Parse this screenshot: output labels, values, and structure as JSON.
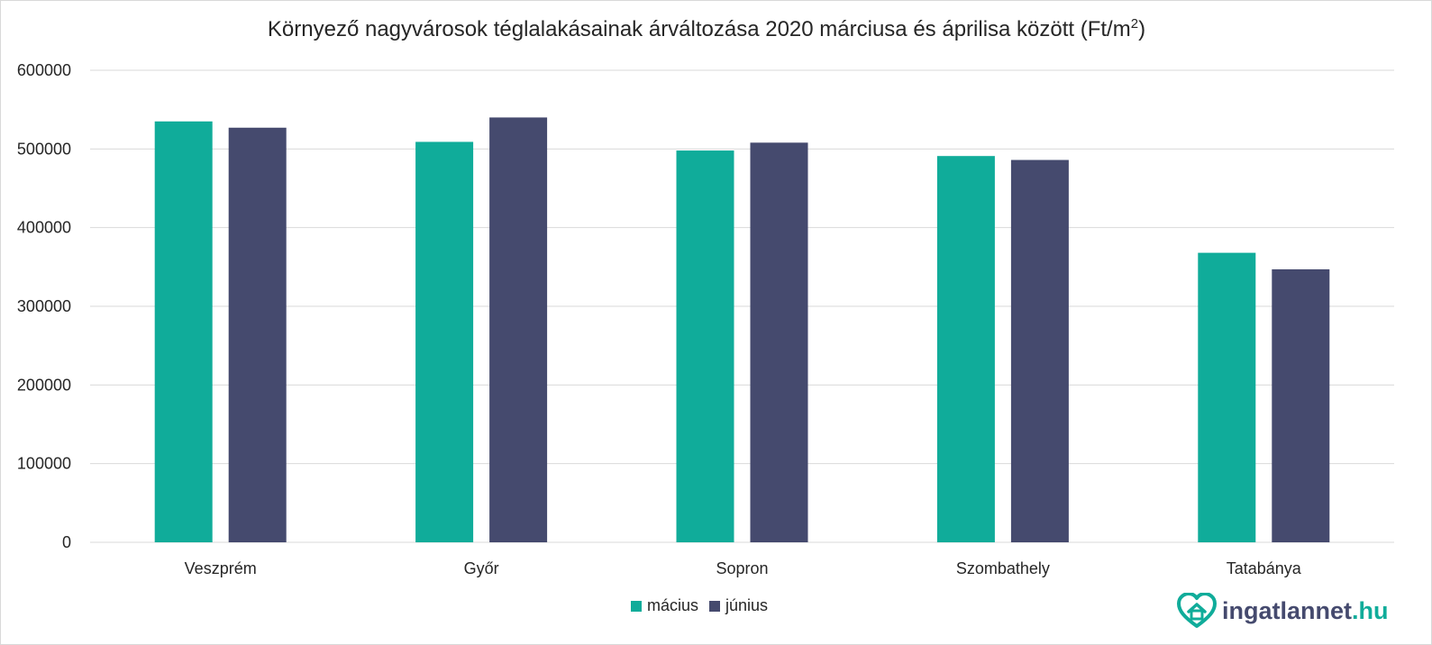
{
  "chart_data": {
    "type": "bar",
    "title_main": "Környező  nagyvárosok téglalakásainak árváltozása 2020 márciusa és áprilisa között (Ft/m",
    "title_sup": "2",
    "title_close": ")",
    "categories": [
      "Veszprém",
      "Győr",
      "Sopron",
      "Szombathely",
      "Tatabánya"
    ],
    "series": [
      {
        "name": "mácius",
        "color": "#10ac9a",
        "values": [
          535000,
          509000,
          498000,
          491000,
          368000
        ]
      },
      {
        "name": "június",
        "color": "#454a6e",
        "values": [
          527000,
          540000,
          508000,
          486000,
          347000
        ]
      }
    ],
    "ylim": [
      0,
      600000
    ],
    "yticks": [
      "0",
      "100000",
      "200000",
      "300000",
      "400000",
      "500000",
      "600000"
    ],
    "grid": true,
    "legend_position": "bottom"
  },
  "brand": {
    "name_main": "ingatlannet",
    "name_suffix": ".hu",
    "color_main": "#454a6e",
    "color_accent": "#10ac9a"
  }
}
